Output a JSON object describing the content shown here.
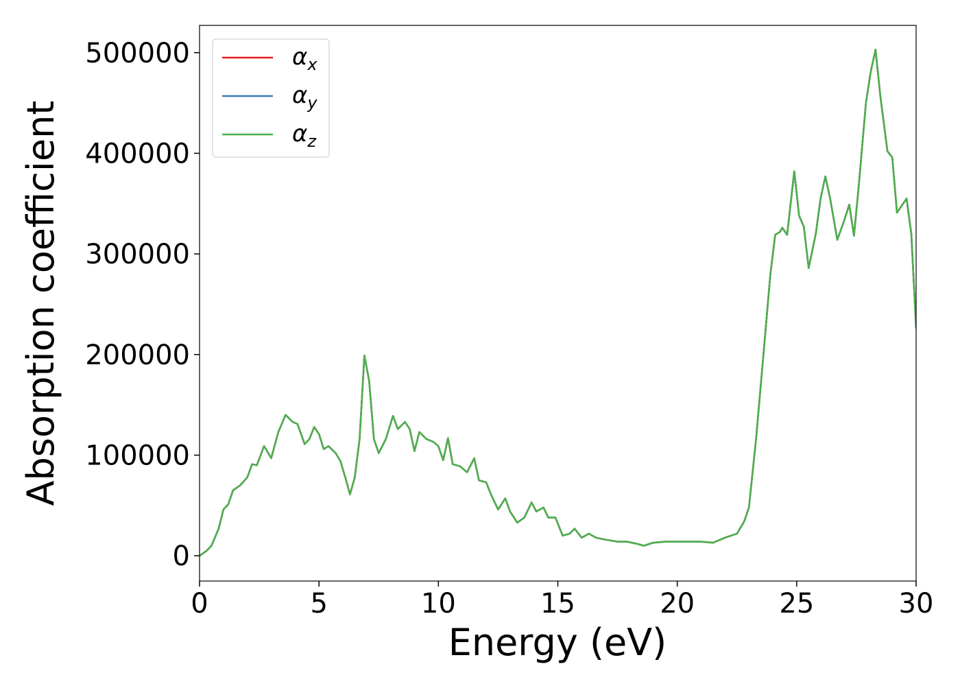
{
  "chart_data": {
    "type": "line",
    "xlabel": "Energy (eV)",
    "ylabel": "Absorption coefficient",
    "xlim": [
      0,
      30
    ],
    "ylim": [
      -25100,
      527100
    ],
    "xticks": [
      0,
      5,
      10,
      15,
      20,
      25,
      30
    ],
    "yticks": [
      0,
      100000,
      200000,
      300000,
      400000,
      500000
    ],
    "legend": "upper left",
    "x": [
      0,
      0.3,
      0.5,
      0.8,
      1.0,
      1.2,
      1.4,
      1.7,
      2.0,
      2.2,
      2.4,
      2.7,
      3.0,
      3.3,
      3.6,
      3.9,
      4.1,
      4.4,
      4.6,
      4.8,
      5.0,
      5.2,
      5.4,
      5.7,
      5.9,
      6.1,
      6.3,
      6.5,
      6.7,
      6.9,
      7.1,
      7.3,
      7.5,
      7.8,
      8.1,
      8.3,
      8.6,
      8.8,
      9.0,
      9.2,
      9.5,
      9.8,
      10.0,
      10.2,
      10.4,
      10.6,
      10.9,
      11.2,
      11.5,
      11.7,
      12.0,
      12.2,
      12.5,
      12.8,
      13.0,
      13.3,
      13.6,
      13.9,
      14.1,
      14.4,
      14.6,
      14.9,
      15.2,
      15.5,
      15.7,
      16.0,
      16.3,
      16.6,
      17.0,
      17.5,
      17.9,
      18.3,
      18.6,
      19.0,
      19.5,
      20.0,
      20.5,
      21.0,
      21.5,
      22.0,
      22.5,
      22.8,
      23.0,
      23.3,
      23.6,
      23.9,
      24.1,
      24.3,
      24.4,
      24.6,
      24.9,
      25.1,
      25.3,
      25.5,
      25.8,
      26.0,
      26.2,
      26.4,
      26.7,
      27.0,
      27.2,
      27.4,
      27.6,
      27.9,
      28.1,
      28.3,
      28.5,
      28.8,
      29.0,
      29.2,
      29.4,
      29.6,
      29.8,
      30.0
    ],
    "series": [
      {
        "name": "αx",
        "color": "#e41a1c",
        "values": [
          0,
          5000,
          10000,
          27000,
          46000,
          51000,
          65000,
          70000,
          78000,
          91000,
          90000,
          109000,
          97000,
          123000,
          140000,
          133000,
          131000,
          111000,
          116000,
          128000,
          121000,
          106000,
          109000,
          102000,
          94000,
          78000,
          61000,
          78000,
          116000,
          199000,
          174000,
          116000,
          102000,
          116000,
          139000,
          126000,
          133000,
          126000,
          104000,
          123000,
          116000,
          113000,
          109000,
          95000,
          117000,
          91000,
          89000,
          83000,
          97000,
          75000,
          73000,
          61000,
          46000,
          57000,
          44000,
          33000,
          38000,
          53000,
          44000,
          48000,
          38000,
          38000,
          20000,
          22000,
          27000,
          18000,
          22000,
          18000,
          16000,
          14000,
          14000,
          12000,
          10000,
          13000,
          14000,
          14000,
          14000,
          14000,
          13000,
          18000,
          22000,
          34000,
          48000,
          116000,
          198000,
          280000,
          319000,
          322000,
          326000,
          319000,
          382000,
          338000,
          327000,
          286000,
          320000,
          355000,
          377000,
          355000,
          314000,
          334000,
          349000,
          318000,
          368000,
          450000,
          481000,
          503000,
          457000,
          402000,
          396000,
          341000,
          348000,
          355000,
          320000,
          226000
        ]
      },
      {
        "name": "αy",
        "color": "#377eb8",
        "values": [
          0,
          5000,
          10000,
          27000,
          46000,
          51000,
          65000,
          70000,
          78000,
          91000,
          90000,
          109000,
          97000,
          123000,
          140000,
          133000,
          131000,
          111000,
          116000,
          128000,
          121000,
          106000,
          109000,
          102000,
          94000,
          78000,
          61000,
          78000,
          116000,
          199000,
          174000,
          116000,
          102000,
          116000,
          139000,
          126000,
          133000,
          126000,
          104000,
          123000,
          116000,
          113000,
          109000,
          95000,
          117000,
          91000,
          89000,
          83000,
          97000,
          75000,
          73000,
          61000,
          46000,
          57000,
          44000,
          33000,
          38000,
          53000,
          44000,
          48000,
          38000,
          38000,
          20000,
          22000,
          27000,
          18000,
          22000,
          18000,
          16000,
          14000,
          14000,
          12000,
          10000,
          13000,
          14000,
          14000,
          14000,
          14000,
          13000,
          18000,
          22000,
          34000,
          48000,
          116000,
          198000,
          280000,
          319000,
          322000,
          326000,
          319000,
          382000,
          338000,
          327000,
          286000,
          320000,
          355000,
          377000,
          355000,
          314000,
          334000,
          349000,
          318000,
          368000,
          450000,
          481000,
          503000,
          457000,
          402000,
          396000,
          341000,
          348000,
          355000,
          320000,
          226000
        ]
      },
      {
        "name": "αz",
        "color": "#4daf4a",
        "values": [
          0,
          5000,
          10000,
          27000,
          46000,
          51000,
          65000,
          70000,
          78000,
          91000,
          90000,
          109000,
          97000,
          123000,
          140000,
          133000,
          131000,
          111000,
          116000,
          128000,
          121000,
          106000,
          109000,
          102000,
          94000,
          78000,
          61000,
          78000,
          116000,
          199000,
          174000,
          116000,
          102000,
          116000,
          139000,
          126000,
          133000,
          126000,
          104000,
          123000,
          116000,
          113000,
          109000,
          95000,
          117000,
          91000,
          89000,
          83000,
          97000,
          75000,
          73000,
          61000,
          46000,
          57000,
          44000,
          33000,
          38000,
          53000,
          44000,
          48000,
          38000,
          38000,
          20000,
          22000,
          27000,
          18000,
          22000,
          18000,
          16000,
          14000,
          14000,
          12000,
          10000,
          13000,
          14000,
          14000,
          14000,
          14000,
          13000,
          18000,
          22000,
          34000,
          48000,
          116000,
          198000,
          280000,
          319000,
          322000,
          326000,
          319000,
          382000,
          338000,
          327000,
          286000,
          320000,
          355000,
          377000,
          355000,
          314000,
          334000,
          349000,
          318000,
          368000,
          450000,
          481000,
          503000,
          457000,
          402000,
          396000,
          341000,
          348000,
          355000,
          320000,
          226000
        ]
      }
    ]
  }
}
